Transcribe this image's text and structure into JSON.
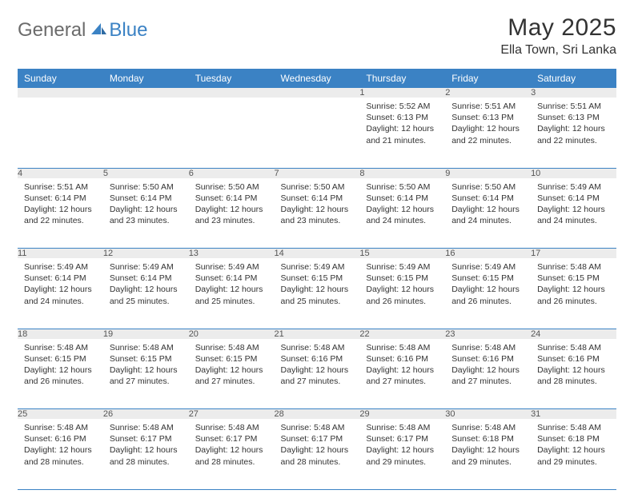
{
  "brand": {
    "part1": "General",
    "part2": "Blue"
  },
  "header": {
    "month_title": "May 2025",
    "location": "Ella Town, Sri Lanka"
  },
  "colors": {
    "header_blue": "#3b82c4",
    "daynum_bg": "#ececec",
    "text": "#333333",
    "logo_gray": "#6b6b6b"
  },
  "day_names": [
    "Sunday",
    "Monday",
    "Tuesday",
    "Wednesday",
    "Thursday",
    "Friday",
    "Saturday"
  ],
  "weeks": [
    [
      null,
      null,
      null,
      null,
      {
        "n": "1",
        "sr": "5:52 AM",
        "ss": "6:13 PM",
        "dl": "12 hours and 21 minutes."
      },
      {
        "n": "2",
        "sr": "5:51 AM",
        "ss": "6:13 PM",
        "dl": "12 hours and 22 minutes."
      },
      {
        "n": "3",
        "sr": "5:51 AM",
        "ss": "6:13 PM",
        "dl": "12 hours and 22 minutes."
      }
    ],
    [
      {
        "n": "4",
        "sr": "5:51 AM",
        "ss": "6:14 PM",
        "dl": "12 hours and 22 minutes."
      },
      {
        "n": "5",
        "sr": "5:50 AM",
        "ss": "6:14 PM",
        "dl": "12 hours and 23 minutes."
      },
      {
        "n": "6",
        "sr": "5:50 AM",
        "ss": "6:14 PM",
        "dl": "12 hours and 23 minutes."
      },
      {
        "n": "7",
        "sr": "5:50 AM",
        "ss": "6:14 PM",
        "dl": "12 hours and 23 minutes."
      },
      {
        "n": "8",
        "sr": "5:50 AM",
        "ss": "6:14 PM",
        "dl": "12 hours and 24 minutes."
      },
      {
        "n": "9",
        "sr": "5:50 AM",
        "ss": "6:14 PM",
        "dl": "12 hours and 24 minutes."
      },
      {
        "n": "10",
        "sr": "5:49 AM",
        "ss": "6:14 PM",
        "dl": "12 hours and 24 minutes."
      }
    ],
    [
      {
        "n": "11",
        "sr": "5:49 AM",
        "ss": "6:14 PM",
        "dl": "12 hours and 24 minutes."
      },
      {
        "n": "12",
        "sr": "5:49 AM",
        "ss": "6:14 PM",
        "dl": "12 hours and 25 minutes."
      },
      {
        "n": "13",
        "sr": "5:49 AM",
        "ss": "6:14 PM",
        "dl": "12 hours and 25 minutes."
      },
      {
        "n": "14",
        "sr": "5:49 AM",
        "ss": "6:15 PM",
        "dl": "12 hours and 25 minutes."
      },
      {
        "n": "15",
        "sr": "5:49 AM",
        "ss": "6:15 PM",
        "dl": "12 hours and 26 minutes."
      },
      {
        "n": "16",
        "sr": "5:49 AM",
        "ss": "6:15 PM",
        "dl": "12 hours and 26 minutes."
      },
      {
        "n": "17",
        "sr": "5:48 AM",
        "ss": "6:15 PM",
        "dl": "12 hours and 26 minutes."
      }
    ],
    [
      {
        "n": "18",
        "sr": "5:48 AM",
        "ss": "6:15 PM",
        "dl": "12 hours and 26 minutes."
      },
      {
        "n": "19",
        "sr": "5:48 AM",
        "ss": "6:15 PM",
        "dl": "12 hours and 27 minutes."
      },
      {
        "n": "20",
        "sr": "5:48 AM",
        "ss": "6:15 PM",
        "dl": "12 hours and 27 minutes."
      },
      {
        "n": "21",
        "sr": "5:48 AM",
        "ss": "6:16 PM",
        "dl": "12 hours and 27 minutes."
      },
      {
        "n": "22",
        "sr": "5:48 AM",
        "ss": "6:16 PM",
        "dl": "12 hours and 27 minutes."
      },
      {
        "n": "23",
        "sr": "5:48 AM",
        "ss": "6:16 PM",
        "dl": "12 hours and 27 minutes."
      },
      {
        "n": "24",
        "sr": "5:48 AM",
        "ss": "6:16 PM",
        "dl": "12 hours and 28 minutes."
      }
    ],
    [
      {
        "n": "25",
        "sr": "5:48 AM",
        "ss": "6:16 PM",
        "dl": "12 hours and 28 minutes."
      },
      {
        "n": "26",
        "sr": "5:48 AM",
        "ss": "6:17 PM",
        "dl": "12 hours and 28 minutes."
      },
      {
        "n": "27",
        "sr": "5:48 AM",
        "ss": "6:17 PM",
        "dl": "12 hours and 28 minutes."
      },
      {
        "n": "28",
        "sr": "5:48 AM",
        "ss": "6:17 PM",
        "dl": "12 hours and 28 minutes."
      },
      {
        "n": "29",
        "sr": "5:48 AM",
        "ss": "6:17 PM",
        "dl": "12 hours and 29 minutes."
      },
      {
        "n": "30",
        "sr": "5:48 AM",
        "ss": "6:18 PM",
        "dl": "12 hours and 29 minutes."
      },
      {
        "n": "31",
        "sr": "5:48 AM",
        "ss": "6:18 PM",
        "dl": "12 hours and 29 minutes."
      }
    ]
  ],
  "labels": {
    "sunrise": "Sunrise:",
    "sunset": "Sunset:",
    "daylight": "Daylight:"
  }
}
